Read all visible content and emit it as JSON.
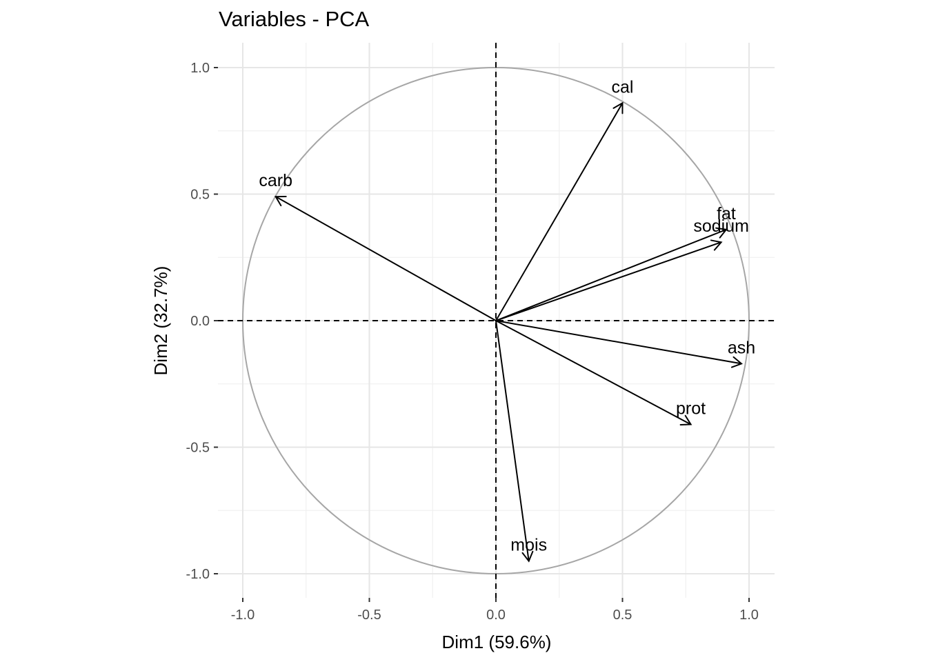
{
  "chart_data": {
    "type": "scatter",
    "subtype": "pca-variable-correlation-circle",
    "title": "Variables - PCA",
    "xlabel": "Dim1 (59.6%)",
    "ylabel": "Dim2 (32.7%)",
    "xlim": [
      -1.1,
      1.1
    ],
    "ylim": [
      -1.1,
      1.1
    ],
    "xticks": [
      -1.0,
      -0.5,
      0.0,
      0.5,
      1.0
    ],
    "yticks": [
      -1.0,
      -0.5,
      0.0,
      0.5,
      1.0
    ],
    "xtick_labels": [
      "-1.0",
      "-0.5",
      "0.0",
      "0.5",
      "1.0"
    ],
    "ytick_labels": [
      "-1.0",
      "-0.5",
      "0.0",
      "0.5",
      "1.0"
    ],
    "grid": true,
    "unit_circle": true,
    "variables": [
      {
        "name": "cal",
        "x": 0.5,
        "y": 0.86
      },
      {
        "name": "carb",
        "x": -0.87,
        "y": 0.49
      },
      {
        "name": "fat",
        "x": 0.91,
        "y": 0.36
      },
      {
        "name": "sodium",
        "x": 0.89,
        "y": 0.31
      },
      {
        "name": "ash",
        "x": 0.97,
        "y": -0.17
      },
      {
        "name": "prot",
        "x": 0.77,
        "y": -0.41
      },
      {
        "name": "mois",
        "x": 0.13,
        "y": -0.95
      }
    ]
  }
}
